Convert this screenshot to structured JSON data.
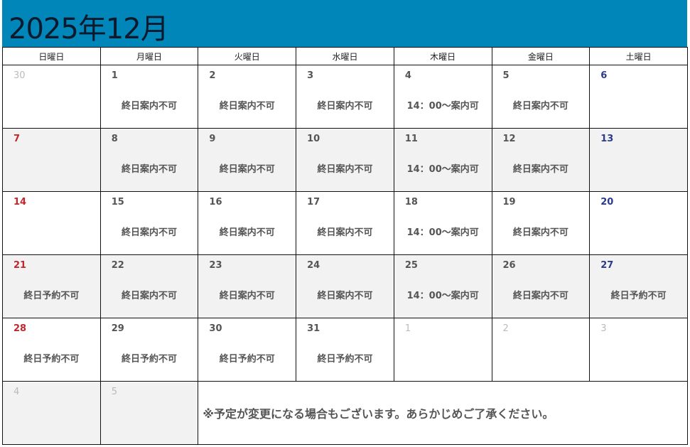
{
  "title": "2025年12月",
  "colors": {
    "header": "#0086b8",
    "sunday": "#c0282d",
    "saturday": "#2c3a8c",
    "other_month": "#bbbbbb"
  },
  "weekdays": [
    "日曜日",
    "月曜日",
    "火曜日",
    "水曜日",
    "木曜日",
    "金曜日",
    "土曜日"
  ],
  "weeks": [
    [
      {
        "day": "30",
        "other": true,
        "status": ""
      },
      {
        "day": "1",
        "status": "終日案内不可"
      },
      {
        "day": "2",
        "status": "終日案内不可"
      },
      {
        "day": "3",
        "status": "終日案内不可"
      },
      {
        "day": "4",
        "status": "14：00～案内可"
      },
      {
        "day": "5",
        "status": "終日案内不可"
      },
      {
        "day": "6",
        "status": ""
      }
    ],
    [
      {
        "day": "7",
        "status": ""
      },
      {
        "day": "8",
        "status": "終日案内不可"
      },
      {
        "day": "9",
        "status": "終日案内不可"
      },
      {
        "day": "10",
        "status": "終日案内不可"
      },
      {
        "day": "11",
        "status": "14：00～案内可"
      },
      {
        "day": "12",
        "status": "終日案内不可"
      },
      {
        "day": "13",
        "status": ""
      }
    ],
    [
      {
        "day": "14",
        "status": ""
      },
      {
        "day": "15",
        "status": "終日案内不可"
      },
      {
        "day": "16",
        "status": "終日案内不可"
      },
      {
        "day": "17",
        "status": "終日案内不可"
      },
      {
        "day": "18",
        "status": "14：00～案内可"
      },
      {
        "day": "19",
        "status": "終日案内不可"
      },
      {
        "day": "20",
        "status": ""
      }
    ],
    [
      {
        "day": "21",
        "status": "終日予約不可"
      },
      {
        "day": "22",
        "status": "終日案内不可"
      },
      {
        "day": "23",
        "status": "終日案内不可"
      },
      {
        "day": "24",
        "status": "終日案内不可"
      },
      {
        "day": "25",
        "status": "14：00～案内可"
      },
      {
        "day": "26",
        "status": "終日案内不可"
      },
      {
        "day": "27",
        "status": "終日予約不可"
      }
    ],
    [
      {
        "day": "28",
        "status": "終日予約不可"
      },
      {
        "day": "29",
        "status": "終日予約不可"
      },
      {
        "day": "30",
        "status": "終日予約不可"
      },
      {
        "day": "31",
        "status": "終日予約不可"
      },
      {
        "day": "1",
        "other": true,
        "status": ""
      },
      {
        "day": "2",
        "other": true,
        "status": ""
      },
      {
        "day": "3",
        "other": true,
        "status": ""
      }
    ],
    [
      {
        "day": "4",
        "other": true,
        "status": ""
      },
      {
        "day": "5",
        "other": true,
        "status": ""
      }
    ]
  ],
  "note": "※予定が変更になる場合もございます。あらかじめご了承ください。"
}
